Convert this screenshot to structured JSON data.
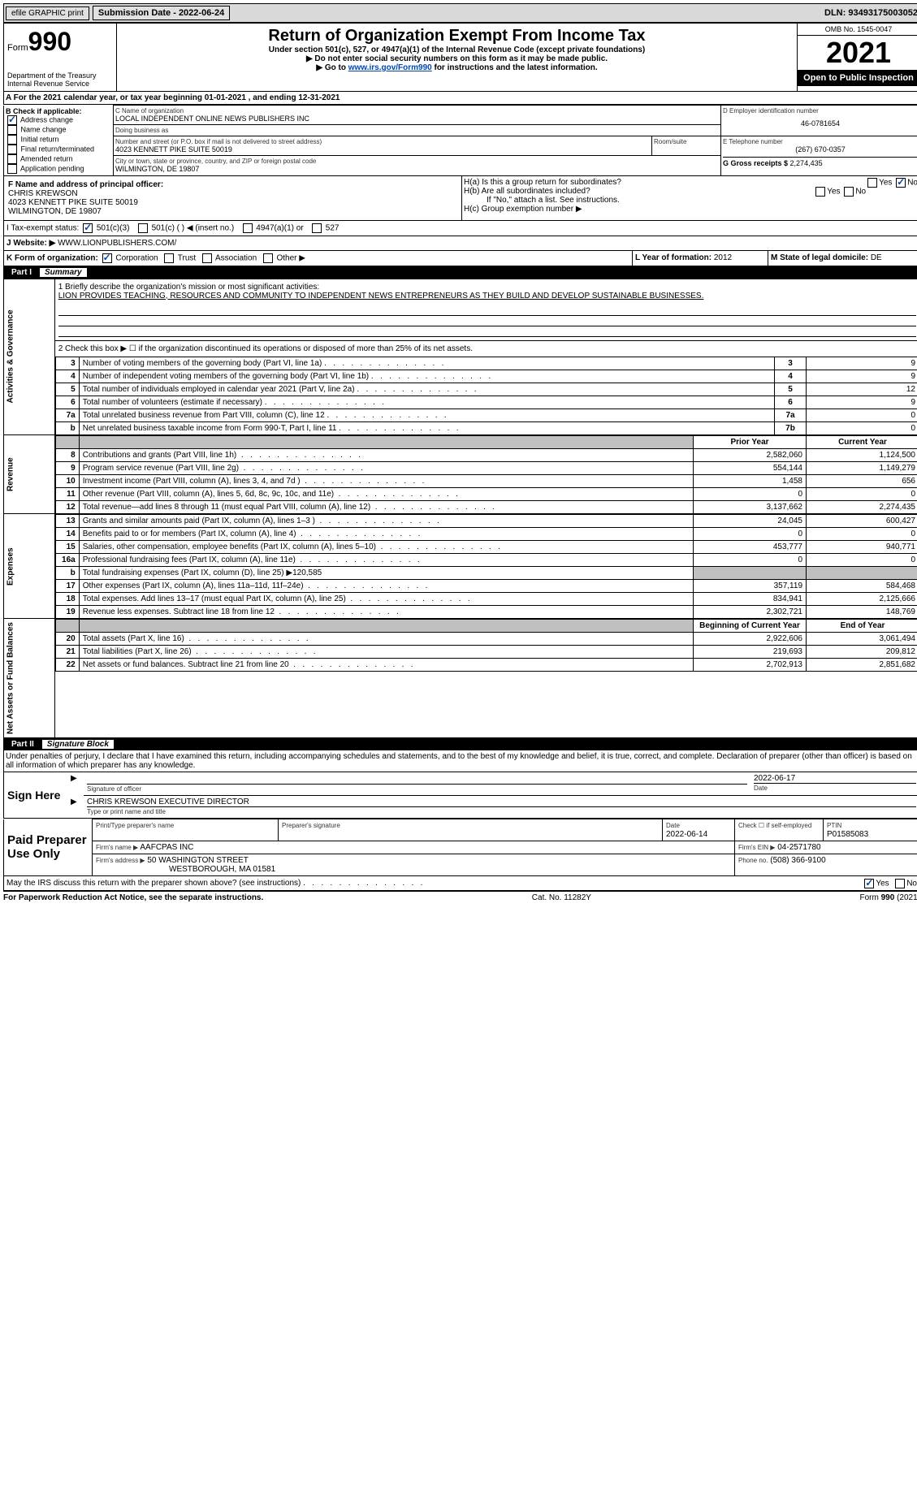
{
  "topbar": {
    "efile": "efile GRAPHIC print",
    "submission_label": "Submission Date - 2022-06-24",
    "dln": "DLN: 93493175003052"
  },
  "header": {
    "form_label": "Form",
    "form_number": "990",
    "dept1": "Department of the Treasury",
    "dept2": "Internal Revenue Service",
    "title": "Return of Organization Exempt From Income Tax",
    "subtitle1": "Under section 501(c), 527, or 4947(a)(1) of the Internal Revenue Code (except private foundations)",
    "subtitle2": "▶ Do not enter social security numbers on this form as it may be made public.",
    "subtitle3_pre": "▶ Go to ",
    "subtitle3_link": "www.irs.gov/Form990",
    "subtitle3_post": " for instructions and the latest information.",
    "omb": "OMB No. 1545-0047",
    "year": "2021",
    "open_public": "Open to Public Inspection"
  },
  "period": {
    "line_a_pre": "A For the 2021 calendar year, or tax year beginning ",
    "begin": "01-01-2021",
    "mid": " , and ending ",
    "end": "12-31-2021"
  },
  "box_b": {
    "label": "B Check if applicable:",
    "opts": [
      "Address change",
      "Name change",
      "Initial return",
      "Final return/terminated",
      "Amended return",
      "Application pending"
    ],
    "checked_index": 0
  },
  "box_c": {
    "name_label": "C Name of organization",
    "name": "LOCAL INDEPENDENT ONLINE NEWS PUBLISHERS INC",
    "dba_label": "Doing business as",
    "dba": "",
    "street_label": "Number and street (or P.O. box if mail is not delivered to street address)",
    "street": "4023 KENNETT PIKE SUITE 50019",
    "room_label": "Room/suite",
    "city_label": "City or town, state or province, country, and ZIP or foreign postal code",
    "city": "WILMINGTON, DE  19807"
  },
  "box_d": {
    "label": "D Employer identification number",
    "value": "46-0781654"
  },
  "box_e": {
    "label": "E Telephone number",
    "value": "(267) 670-0357"
  },
  "box_g": {
    "label": "G Gross receipts $ ",
    "value": "2,274,435"
  },
  "box_f": {
    "label": "F Name and address of principal officer:",
    "name": "CHRIS KREWSON",
    "street": "4023 KENNETT PIKE SUITE 50019",
    "city": "WILMINGTON, DE  19807"
  },
  "box_h": {
    "ha": "H(a)  Is this a group return for subordinates?",
    "hb": "H(b)  Are all subordinates included?",
    "hb_note": "If \"No,\" attach a list. See instructions.",
    "hc": "H(c)  Group exemption number ▶"
  },
  "line_i": {
    "label": "I   Tax-exempt status:",
    "opts": [
      "501(c)(3)",
      "501(c) (  ) ◀ (insert no.)",
      "4947(a)(1) or",
      "527"
    ]
  },
  "line_j": {
    "label": "J   Website: ▶",
    "value": "WWW.LIONPUBLISHERS.COM/"
  },
  "line_k": {
    "label": "K Form of organization:",
    "opts": [
      "Corporation",
      "Trust",
      "Association",
      "Other ▶"
    ]
  },
  "line_l": {
    "label": "L Year of formation: ",
    "value": "2012"
  },
  "line_m": {
    "label": "M State of legal domicile: ",
    "value": "DE"
  },
  "part1": {
    "part_num": "Part I",
    "part_title": "Summary",
    "q1_label": "1   Briefly describe the organization's mission or most significant activities:",
    "q1_text": "LION PROVIDES TEACHING, RESOURCES AND COMMUNITY TO INDEPENDENT NEWS ENTREPRENEURS AS THEY BUILD AND DEVELOP SUSTAINABLE BUSINESSES.",
    "q2": "2   Check this box ▶ ☐ if the organization discontinued its operations or disposed of more than 25% of its net assets.",
    "governance_label": "Activities & Governance",
    "revenue_label": "Revenue",
    "expenses_label": "Expenses",
    "netassets_label": "Net Assets or Fund Balances",
    "prior_year": "Prior Year",
    "current_year": "Current Year",
    "begin_year": "Beginning of Current Year",
    "end_year": "End of Year",
    "lines_gov": [
      {
        "n": "3",
        "t": "Number of voting members of the governing body (Part VI, line 1a)",
        "box": "3",
        "v": "9"
      },
      {
        "n": "4",
        "t": "Number of independent voting members of the governing body (Part VI, line 1b)",
        "box": "4",
        "v": "9"
      },
      {
        "n": "5",
        "t": "Total number of individuals employed in calendar year 2021 (Part V, line 2a)",
        "box": "5",
        "v": "12"
      },
      {
        "n": "6",
        "t": "Total number of volunteers (estimate if necessary)",
        "box": "6",
        "v": "9"
      },
      {
        "n": "7a",
        "t": "Total unrelated business revenue from Part VIII, column (C), line 12",
        "box": "7a",
        "v": "0"
      },
      {
        "n": "b",
        "t": "Net unrelated business taxable income from Form 990-T, Part I, line 11",
        "box": "7b",
        "v": "0"
      }
    ],
    "lines_rev": [
      {
        "n": "8",
        "t": "Contributions and grants (Part VIII, line 1h)",
        "p": "2,582,060",
        "c": "1,124,500"
      },
      {
        "n": "9",
        "t": "Program service revenue (Part VIII, line 2g)",
        "p": "554,144",
        "c": "1,149,279"
      },
      {
        "n": "10",
        "t": "Investment income (Part VIII, column (A), lines 3, 4, and 7d )",
        "p": "1,458",
        "c": "656"
      },
      {
        "n": "11",
        "t": "Other revenue (Part VIII, column (A), lines 5, 6d, 8c, 9c, 10c, and 11e)",
        "p": "0",
        "c": "0"
      },
      {
        "n": "12",
        "t": "Total revenue—add lines 8 through 11 (must equal Part VIII, column (A), line 12)",
        "p": "3,137,662",
        "c": "2,274,435"
      }
    ],
    "lines_exp": [
      {
        "n": "13",
        "t": "Grants and similar amounts paid (Part IX, column (A), lines 1–3 )",
        "p": "24,045",
        "c": "600,427"
      },
      {
        "n": "14",
        "t": "Benefits paid to or for members (Part IX, column (A), line 4)",
        "p": "0",
        "c": "0"
      },
      {
        "n": "15",
        "t": "Salaries, other compensation, employee benefits (Part IX, column (A), lines 5–10)",
        "p": "453,777",
        "c": "940,771"
      },
      {
        "n": "16a",
        "t": "Professional fundraising fees (Part IX, column (A), line 11e)",
        "p": "0",
        "c": "0"
      },
      {
        "n": "b",
        "t": "Total fundraising expenses (Part IX, column (D), line 25) ▶120,585",
        "p": "",
        "c": "",
        "grey": true
      },
      {
        "n": "17",
        "t": "Other expenses (Part IX, column (A), lines 11a–11d, 11f–24e)",
        "p": "357,119",
        "c": "584,468"
      },
      {
        "n": "18",
        "t": "Total expenses. Add lines 13–17 (must equal Part IX, column (A), line 25)",
        "p": "834,941",
        "c": "2,125,666"
      },
      {
        "n": "19",
        "t": "Revenue less expenses. Subtract line 18 from line 12",
        "p": "2,302,721",
        "c": "148,769"
      }
    ],
    "lines_net": [
      {
        "n": "20",
        "t": "Total assets (Part X, line 16)",
        "p": "2,922,606",
        "c": "3,061,494"
      },
      {
        "n": "21",
        "t": "Total liabilities (Part X, line 26)",
        "p": "219,693",
        "c": "209,812"
      },
      {
        "n": "22",
        "t": "Net assets or fund balances. Subtract line 21 from line 20",
        "p": "2,702,913",
        "c": "2,851,682"
      }
    ]
  },
  "part2": {
    "part_num": "Part II",
    "part_title": "Signature Block",
    "decl": "Under penalties of perjury, I declare that I have examined this return, including accompanying schedules and statements, and to the best of my knowledge and belief, it is true, correct, and complete. Declaration of preparer (other than officer) is based on all information of which preparer has any knowledge.",
    "sign_here": "Sign Here",
    "sig_officer": "Signature of officer",
    "sig_date": "2022-06-17",
    "date_label": "Date",
    "name_title": "CHRIS KREWSON  EXECUTIVE DIRECTOR",
    "name_title_label": "Type or print name and title",
    "paid_prep": "Paid Preparer Use Only",
    "prep_name_label": "Print/Type preparer's name",
    "prep_sig_label": "Preparer's signature",
    "prep_date_label": "Date",
    "prep_date": "2022-06-14",
    "self_emp": "Check ☐ if self-employed",
    "ptin_label": "PTIN",
    "ptin": "P01585083",
    "firm_name_label": "Firm's name    ▶",
    "firm_name": "AAFCPAS INC",
    "firm_ein_label": "Firm's EIN ▶",
    "firm_ein": "04-2571780",
    "firm_addr_label": "Firm's address ▶",
    "firm_addr1": "50 WASHINGTON STREET",
    "firm_addr2": "WESTBOROUGH, MA  01581",
    "phone_label": "Phone no.",
    "phone": "(508) 366-9100",
    "may_irs": "May the IRS discuss this return with the preparer shown above? (see instructions)"
  },
  "footer": {
    "paperwork": "For Paperwork Reduction Act Notice, see the separate instructions.",
    "cat": "Cat. No. 11282Y",
    "formref": "Form 990 (2021)"
  }
}
